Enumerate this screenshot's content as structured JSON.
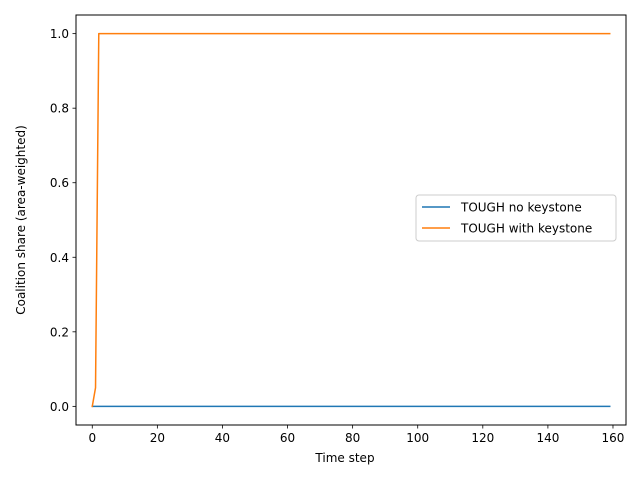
{
  "chart_data": {
    "type": "line",
    "title": "",
    "xlabel": "Time step",
    "ylabel": "Coalition share (area-weighted)",
    "xlim": [
      -5,
      164
    ],
    "ylim": [
      -0.05,
      1.05
    ],
    "xticks": [
      0,
      20,
      40,
      60,
      80,
      100,
      120,
      140,
      160
    ],
    "yticks": [
      0.0,
      0.2,
      0.4,
      0.6,
      0.8,
      1.0
    ],
    "ytick_labels": [
      "0.0",
      "0.2",
      "0.4",
      "0.6",
      "0.8",
      "1.0"
    ],
    "grid": false,
    "legend": {
      "placement": "center-right",
      "entries": [
        "TOUGH no keystone",
        "TOUGH with keystone"
      ]
    },
    "series": [
      {
        "name": "TOUGH no keystone",
        "color": "#1f77b4",
        "x": [
          0,
          159
        ],
        "y": [
          0.0,
          0.0
        ]
      },
      {
        "name": "TOUGH with keystone",
        "color": "#ff7f0e",
        "x": [
          0,
          1,
          2,
          159
        ],
        "y": [
          0.0,
          0.05,
          1.0,
          1.0
        ]
      }
    ]
  }
}
